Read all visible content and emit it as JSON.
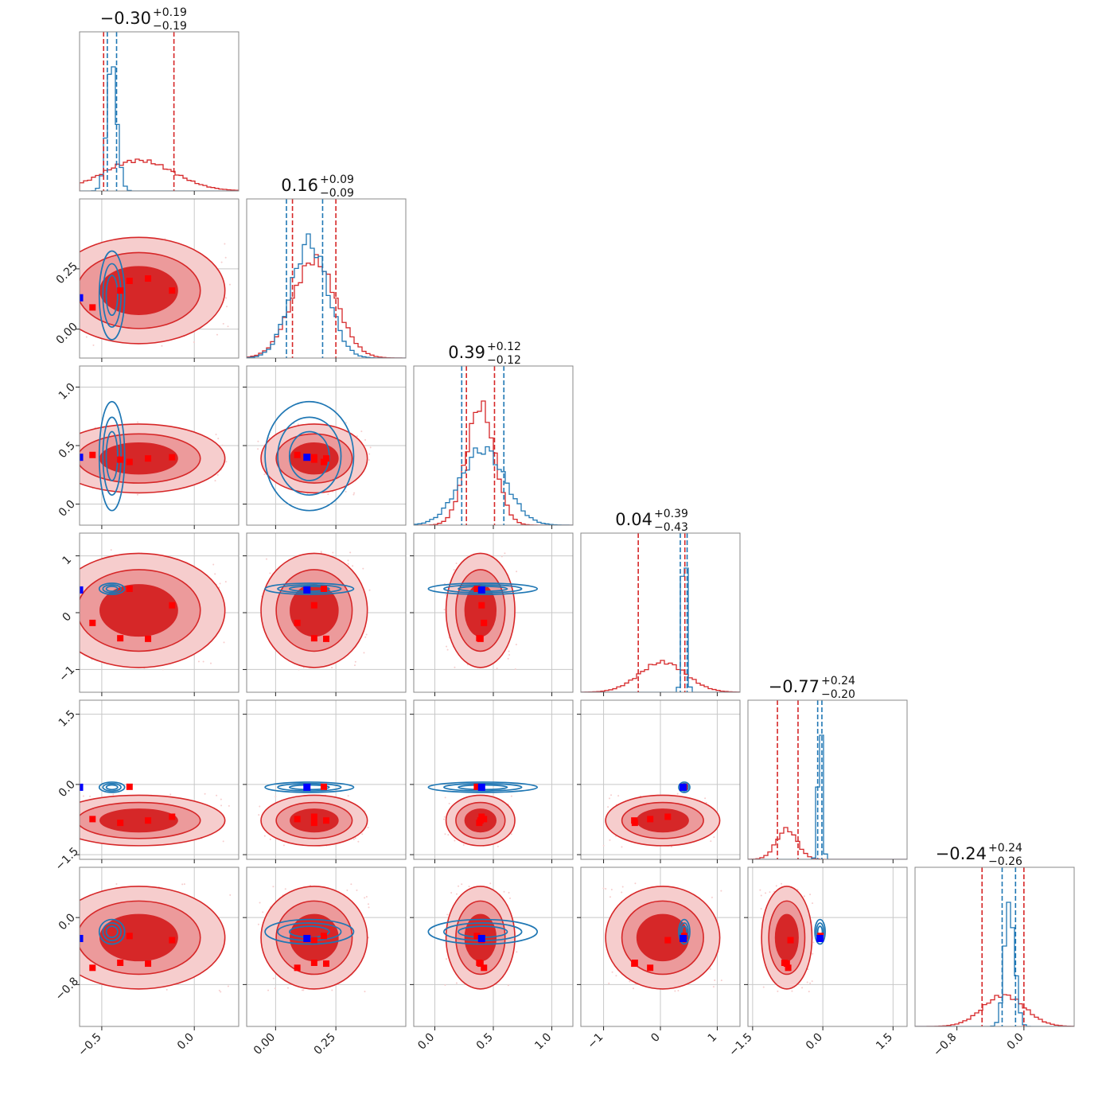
{
  "chart_data": {
    "type": "corner",
    "colors": {
      "series_a": "#d62728",
      "series_a_mid": "#ec9a9b",
      "series_a_light": "#f6cdcd",
      "series_b": "#1f77b4",
      "truth": "#0000ff",
      "marker_a": "#ff0000"
    },
    "params": [
      {
        "label": "−0.30",
        "plus": "+0.19",
        "minus": "−0.19",
        "range": [
          -0.62,
          0.24
        ],
        "ticks": [
          -0.5,
          0.0
        ],
        "tick_labels": [
          "−0.5",
          "0.0"
        ],
        "grid": [
          -0.5,
          0.0
        ],
        "a_mean": -0.3,
        "a_sd": 0.19,
        "b_mean": -0.445,
        "b_sd": 0.028,
        "a_q": [
          -0.49,
          -0.11
        ],
        "b_q": [
          -0.47,
          -0.42
        ]
      },
      {
        "label": "0.16",
        "plus": "+0.09",
        "minus": "−0.09",
        "range": [
          -0.12,
          0.54
        ],
        "ticks": [
          0.0,
          0.25
        ],
        "tick_labels": [
          "0.00",
          "0.25"
        ],
        "grid": [
          0.0,
          0.25
        ],
        "a_mean": 0.16,
        "a_sd": 0.09,
        "b_mean": 0.14,
        "b_sd": 0.075,
        "a_q": [
          0.07,
          0.25
        ],
        "b_q": [
          0.045,
          0.195
        ]
      },
      {
        "label": "0.39",
        "plus": "+0.12",
        "minus": "−0.12",
        "range": [
          -0.18,
          1.18
        ],
        "ticks": [
          0.0,
          0.5,
          1.0
        ],
        "tick_labels": [
          "0.0",
          "0.5",
          "1.0"
        ],
        "grid": [
          0.0,
          0.5,
          1.0
        ],
        "a_mean": 0.39,
        "a_sd": 0.12,
        "b_mean": 0.41,
        "b_sd": 0.19,
        "a_q": [
          0.27,
          0.51
        ],
        "b_q": [
          0.23,
          0.59
        ]
      },
      {
        "label": "0.04",
        "plus": "+0.39",
        "minus": "−0.43",
        "range": [
          -1.4,
          1.4
        ],
        "ticks": [
          -1,
          0,
          1
        ],
        "tick_labels": [
          "−1",
          "0",
          "1"
        ],
        "grid": [
          -1,
          0,
          1
        ],
        "a_mean": 0.04,
        "a_sd": 0.41,
        "b_mean": 0.42,
        "b_sd": 0.04,
        "a_q": [
          -0.39,
          0.43
        ],
        "b_q": [
          0.35,
          0.47
        ]
      },
      {
        "label": "−0.77",
        "plus": "+0.24",
        "minus": "−0.20",
        "range": [
          -1.6,
          1.8
        ],
        "ticks": [
          -1.5,
          0.0,
          1.5
        ],
        "tick_labels": [
          "−1.5",
          "0.0",
          "1.5"
        ],
        "grid": [
          -1.5,
          0.0,
          1.5
        ],
        "a_mean": -0.77,
        "a_sd": 0.22,
        "b_mean": -0.06,
        "b_sd": 0.045,
        "a_q": [
          -0.97,
          -0.53
        ],
        "b_q": [
          -0.11,
          -0.02
        ]
      },
      {
        "label": "−0.24",
        "plus": "+0.24",
        "minus": "−0.26",
        "range": [
          -1.3,
          0.6
        ],
        "ticks": [
          -0.8,
          0.0
        ],
        "tick_labels": [
          "−0.8",
          "0.0"
        ],
        "grid": [
          -0.8,
          0.0
        ],
        "a_mean": -0.24,
        "a_sd": 0.25,
        "b_mean": -0.17,
        "b_sd": 0.06,
        "a_q": [
          -0.5,
          0.0
        ],
        "b_q": [
          -0.26,
          -0.1
        ]
      }
    ],
    "truth": [
      -0.62,
      0.13,
      0.4,
      0.4,
      -0.06,
      -0.25
    ],
    "markers_a": [
      [
        -0.35,
        0.2,
        0.36,
        0.42,
        -0.05,
        -0.22
      ],
      [
        -0.12,
        0.16,
        0.4,
        0.13,
        -0.69,
        -0.27
      ],
      [
        -0.55,
        0.09,
        0.42,
        -0.18,
        -0.74,
        -0.6
      ],
      [
        -0.4,
        0.16,
        0.38,
        -0.45,
        -0.82,
        -0.54
      ],
      [
        -0.25,
        0.21,
        0.39,
        -0.46,
        -0.77,
        -0.55
      ]
    ]
  }
}
